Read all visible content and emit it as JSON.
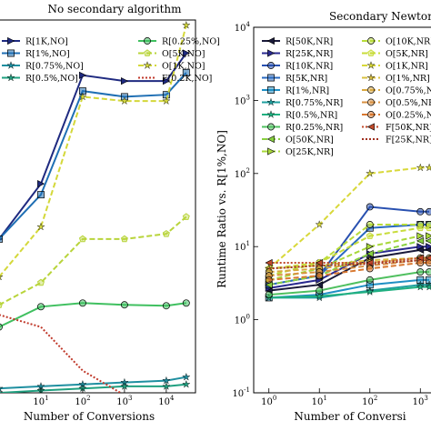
{
  "chart_data": [
    {
      "type": "line",
      "title": "No secondary algorithm",
      "xlabel": "Number of Conversions",
      "ylabel": "",
      "xscale": "log",
      "yscale": "log",
      "xlim": [
        1,
        50000
      ],
      "ylim": [
        1.2,
        1100
      ],
      "xticks": [
        {
          "base": "10",
          "exp": "1",
          "value": 10
        },
        {
          "base": "10",
          "exp": "2",
          "value": 100
        },
        {
          "base": "10",
          "exp": "3",
          "value": 1000
        },
        {
          "base": "10",
          "exp": "4",
          "value": 10000
        }
      ],
      "yticks": [],
      "grid": false,
      "legend_placement": "top",
      "series": [
        {
          "name": "R[1K,NO]",
          "color": "#1f2a80",
          "style": "solid",
          "marker": "triangle-right",
          "x": [
            1,
            10,
            100,
            1000,
            10000,
            30000
          ],
          "y": [
            20,
            55,
            400,
            360,
            360,
            600
          ]
        },
        {
          "name": "R[1%,NO]",
          "color": "#1f6fb4",
          "style": "solid",
          "marker": "square",
          "x": [
            1,
            10,
            100,
            1000,
            10000,
            30000
          ],
          "y": [
            20,
            45,
            300,
            270,
            280,
            420
          ]
        },
        {
          "name": "R[0.75%,NO]",
          "color": "#1f8fa0",
          "style": "solid",
          "marker": "star",
          "x": [
            1,
            10,
            100,
            1000,
            10000,
            30000
          ],
          "y": [
            1.3,
            1.35,
            1.4,
            1.45,
            1.5,
            1.6
          ]
        },
        {
          "name": "R[0.5%,NO]",
          "color": "#20a080",
          "style": "solid",
          "marker": "star",
          "x": [
            1,
            10,
            100,
            1000,
            10000,
            30000
          ],
          "y": [
            1.2,
            1.25,
            1.3,
            1.35,
            1.35,
            1.4
          ]
        },
        {
          "name": "R[0.25%,NO]",
          "color": "#40c060",
          "style": "solid",
          "marker": "circle",
          "x": [
            1,
            10,
            100,
            1000,
            10000,
            30000
          ],
          "y": [
            4,
            5.8,
            6.2,
            6.0,
            5.9,
            6.2
          ]
        },
        {
          "name": "O[5K,NO]",
          "color": "#b8d43a",
          "style": "dashed",
          "marker": "pentagon",
          "x": [
            1,
            10,
            100,
            1000,
            10000,
            30000
          ],
          "y": [
            6,
            9,
            20,
            20,
            22,
            30
          ]
        },
        {
          "name": "O[1K,NO]",
          "color": "#d4d83a",
          "style": "dashed",
          "marker": "star",
          "x": [
            1,
            10,
            100,
            1000,
            10000,
            30000
          ],
          "y": [
            10,
            25,
            270,
            250,
            250,
            1000
          ]
        },
        {
          "name": "F[0.2K,NO]",
          "color": "#c0392b",
          "style": "dotted",
          "marker": "none",
          "x": [
            1,
            10,
            100,
            1000,
            10000,
            30000
          ],
          "y": [
            5,
            4,
            1.8,
            1.15,
            1.15,
            1.15
          ]
        }
      ]
    },
    {
      "type": "line",
      "title": "Secondary Newton-R",
      "xlabel": "Number of Conversi",
      "ylabel": "Runtime Ratio vs. R[1%,NO]",
      "xscale": "log",
      "yscale": "log",
      "xlim": [
        0.5,
        2000
      ],
      "ylim": [
        0.1,
        10000
      ],
      "xticks": [
        {
          "base": "10",
          "exp": "0",
          "value": 1
        },
        {
          "base": "10",
          "exp": "1",
          "value": 10
        },
        {
          "base": "10",
          "exp": "2",
          "value": 100
        },
        {
          "base": "10",
          "exp": "3",
          "value": 1000
        }
      ],
      "yticks": [
        {
          "base": "10",
          "exp": "-1",
          "value": 0.1
        },
        {
          "base": "10",
          "exp": "0",
          "value": 1
        },
        {
          "base": "10",
          "exp": "1",
          "value": 10
        },
        {
          "base": "10",
          "exp": "2",
          "value": 100
        },
        {
          "base": "10",
          "exp": "3",
          "value": 1000
        },
        {
          "base": "10",
          "exp": "4",
          "value": 10000
        }
      ],
      "grid": false,
      "legend_placement": "top",
      "series": [
        {
          "name": "R[50K,NR]",
          "color": "#1a1a3a",
          "style": "solid",
          "marker": "triangle-left",
          "x": [
            1,
            10,
            100,
            1000,
            1500
          ],
          "y": [
            2.5,
            3.0,
            7,
            9,
            9
          ]
        },
        {
          "name": "R[25K,NR]",
          "color": "#2a2a90",
          "style": "solid",
          "marker": "triangle-right",
          "x": [
            1,
            10,
            100,
            1000,
            1500
          ],
          "y": [
            2.7,
            3.5,
            8,
            10,
            10
          ]
        },
        {
          "name": "R[10K,NR]",
          "color": "#2850b0",
          "style": "solid",
          "marker": "circle",
          "x": [
            1,
            10,
            100,
            1000,
            1500
          ],
          "y": [
            3,
            4,
            35,
            30,
            30
          ]
        },
        {
          "name": "R[5K,NR]",
          "color": "#2a6ac0",
          "style": "solid",
          "marker": "square",
          "x": [
            1,
            10,
            100,
            1000,
            1500
          ],
          "y": [
            3,
            4,
            18,
            20,
            20
          ]
        },
        {
          "name": "R[1%,NR]",
          "color": "#1f8fc4",
          "style": "solid",
          "marker": "square",
          "x": [
            1,
            10,
            100,
            1000,
            1500
          ],
          "y": [
            2.0,
            2.2,
            3.0,
            3.5,
            3.5
          ]
        },
        {
          "name": "R[0.75%,NR]",
          "color": "#20a0a0",
          "style": "solid",
          "marker": "star",
          "x": [
            1,
            10,
            100,
            1000,
            1500
          ],
          "y": [
            2.0,
            2.0,
            2.5,
            3.0,
            3.0
          ]
        },
        {
          "name": "R[0.5%,NR]",
          "color": "#20b080",
          "style": "solid",
          "marker": "star",
          "x": [
            1,
            10,
            100,
            1000,
            1500
          ],
          "y": [
            2.0,
            2.1,
            2.4,
            2.8,
            2.8
          ]
        },
        {
          "name": "R[0.25%,NR]",
          "color": "#50c060",
          "style": "solid",
          "marker": "circle",
          "x": [
            1,
            10,
            100,
            1000,
            1500
          ],
          "y": [
            2.2,
            2.5,
            3.5,
            4.5,
            4.5
          ]
        },
        {
          "name": "O[50K,NR]",
          "color": "#88d040",
          "style": "dashed",
          "marker": "triangle-left",
          "x": [
            1,
            10,
            100,
            1000,
            1500
          ],
          "y": [
            3,
            4,
            8,
            12,
            12
          ]
        },
        {
          "name": "O[25K,NR]",
          "color": "#a8d83a",
          "style": "dashed",
          "marker": "triangle-right",
          "x": [
            1,
            10,
            100,
            1000,
            1500
          ],
          "y": [
            3.5,
            5,
            10,
            14,
            14
          ]
        },
        {
          "name": "O[10K,NR]",
          "color": "#b8dc3a",
          "style": "dashed",
          "marker": "circle",
          "x": [
            1,
            10,
            100,
            1000,
            1500
          ],
          "y": [
            4,
            6,
            20,
            20,
            20
          ]
        },
        {
          "name": "O[5K,NR]",
          "color": "#c8dc3a",
          "style": "dashed",
          "marker": "pentagon",
          "x": [
            1,
            10,
            100,
            1000,
            1500
          ],
          "y": [
            5,
            6,
            14,
            18,
            18
          ]
        },
        {
          "name": "O[1K,NR]",
          "color": "#d8d83a",
          "style": "dashed",
          "marker": "star",
          "x": [
            1,
            10,
            100,
            1000,
            1500
          ],
          "y": [
            5,
            20,
            100,
            120,
            120
          ]
        },
        {
          "name": "O[1%,NR]",
          "color": "#d8c040",
          "style": "dashed",
          "marker": "star",
          "x": [
            1,
            10,
            100,
            1000,
            1500
          ],
          "y": [
            5,
            5.5,
            6.5,
            7,
            7
          ]
        },
        {
          "name": "O[0.75%,NR]",
          "color": "#d8a840",
          "style": "dashed",
          "marker": "circle",
          "x": [
            1,
            10,
            100,
            1000,
            1500
          ],
          "y": [
            4.5,
            5.0,
            6,
            7,
            7
          ]
        },
        {
          "name": "O[0.5%,NR]",
          "color": "#d89040",
          "style": "dashed",
          "marker": "circle",
          "x": [
            1,
            10,
            100,
            1000,
            1500
          ],
          "y": [
            4,
            4.5,
            5.5,
            6.5,
            6.5
          ]
        },
        {
          "name": "O[0.25%,NR]",
          "color": "#d87830",
          "style": "dashed",
          "marker": "circle",
          "x": [
            1,
            10,
            100,
            1000,
            1500
          ],
          "y": [
            3.5,
            4.0,
            5.0,
            6.0,
            6.0
          ]
        },
        {
          "name": "F[50K,NR]",
          "color": "#c04a2b",
          "style": "dotted",
          "marker": "triangle-left",
          "x": [
            1,
            10,
            100,
            1000,
            1500
          ],
          "y": [
            6,
            6,
            6,
            7,
            7
          ]
        },
        {
          "name": "F[25K,NR]",
          "color": "#a03020",
          "style": "dotted",
          "marker": "none",
          "x": [
            1,
            10,
            100,
            1000,
            1500
          ],
          "y": [
            5,
            5.5,
            5.8,
            6.5,
            6.5
          ]
        }
      ]
    }
  ]
}
